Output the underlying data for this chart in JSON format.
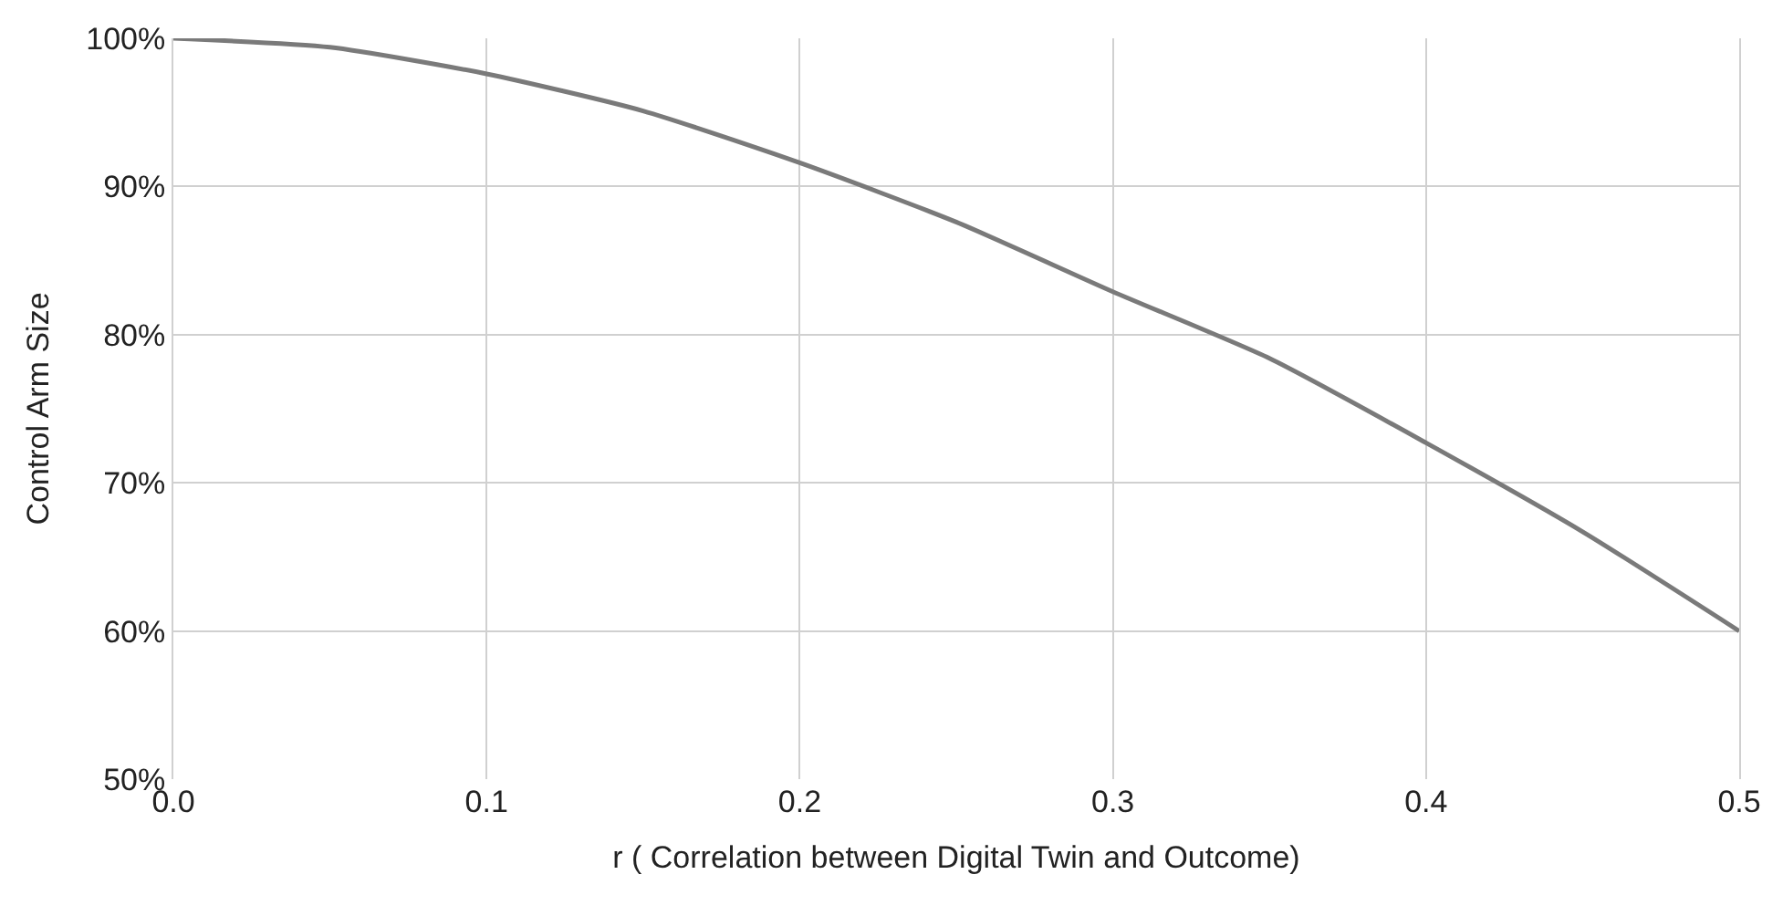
{
  "chart_data": {
    "type": "line",
    "xlabel": "r ( Correlation between Digital Twin and Outcome)",
    "ylabel": "Control Arm Size",
    "x": [
      0,
      0.05,
      0.1,
      0.15,
      0.2,
      0.25,
      0.3,
      0.35,
      0.4,
      0.45,
      0.5
    ],
    "series": [
      {
        "color": "#7a7a7a",
        "values": [
          100,
          99.4,
          97.6,
          95.1,
          91.6,
          87.6,
          82.9,
          78.4,
          72.7,
          66.7,
          60
        ]
      }
    ],
    "xlim": [
      0,
      0.5
    ],
    "xticks": [
      {
        "value": 0,
        "label": "0.0"
      },
      0.1,
      0.2,
      0.3,
      0.4,
      0.5
    ],
    "ylim": [
      50,
      100
    ],
    "yticks": [
      {
        "value": 50,
        "label": "50%"
      },
      {
        "value": 60,
        "label": "60%"
      },
      {
        "value": 70,
        "label": "70%"
      },
      {
        "value": 80,
        "label": "80%"
      },
      {
        "value": 90,
        "label": "90%"
      },
      {
        "value": 100,
        "label": "100%"
      }
    ],
    "grid": true,
    "marker": "none",
    "line_style": "solid",
    "legend": false
  }
}
